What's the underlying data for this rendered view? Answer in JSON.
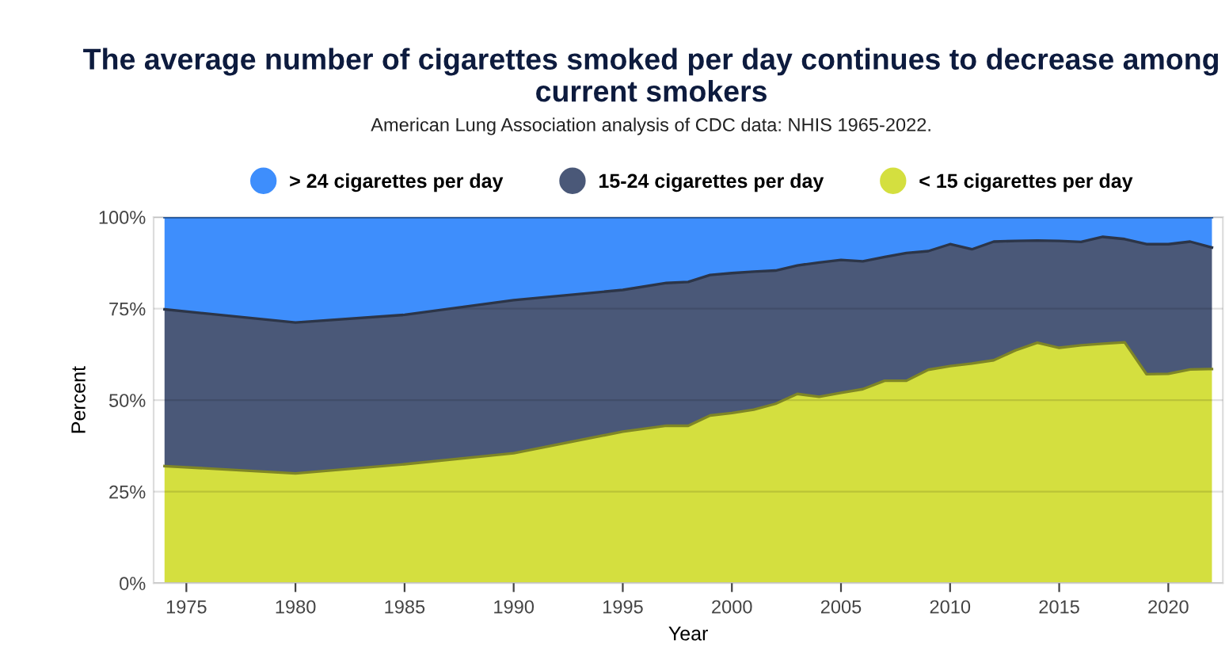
{
  "chart_data": {
    "type": "area",
    "stacked": true,
    "title": "The average number of cigarettes smoked per day continues to decrease among current smokers",
    "subtitle": "American Lung Association analysis of CDC data: NHIS 1965-2022.",
    "xlabel": "Year",
    "ylabel": "Percent",
    "x": [
      1974,
      1980,
      1985,
      1990,
      1995,
      1997,
      1998,
      1999,
      2000,
      2001,
      2002,
      2003,
      2004,
      2005,
      2006,
      2007,
      2008,
      2009,
      2010,
      2011,
      2012,
      2013,
      2014,
      2015,
      2016,
      2017,
      2018,
      2019,
      2020,
      2021,
      2022
    ],
    "series": [
      {
        "name": "< 15 cigarettes per day",
        "color": "#d4df3f",
        "values": [
          32,
          30,
          32.5,
          35.5,
          41.4,
          43,
          43,
          45.8,
          46.5,
          47.4,
          49,
          51.7,
          50.9,
          52,
          53,
          55.3,
          55.3,
          58.3,
          59.3,
          60,
          60.9,
          63.6,
          65.7,
          64.3,
          65,
          65.4,
          65.8,
          57.1,
          57.2,
          58.4,
          58.5
        ]
      },
      {
        "name": "15-24 cigarettes per day",
        "color": "#4a5878",
        "values": [
          42.8,
          41.2,
          40.8,
          41.8,
          38.7,
          39,
          39.3,
          38.4,
          38.2,
          37.7,
          36.4,
          35.1,
          36.7,
          36.3,
          34.9,
          33.8,
          34.9,
          32.4,
          33.3,
          31.2,
          32.4,
          29.9,
          27.9,
          29.2,
          28.2,
          29.2,
          28.2,
          35.5,
          35.4,
          34.9,
          33.2
        ]
      },
      {
        "name": "> 24 cigarettes per day",
        "color": "#3e8efc",
        "values": [
          25.2,
          28.8,
          26.7,
          22.7,
          19.9,
          18,
          17.7,
          15.8,
          15.3,
          14.9,
          14.6,
          13.2,
          12.4,
          11.7,
          12.1,
          10.9,
          9.8,
          9.3,
          7.4,
          8.8,
          6.7,
          6.5,
          6.4,
          6.5,
          6.8,
          5.4,
          6,
          7.4,
          7.4,
          6.7,
          8.3
        ]
      }
    ],
    "xlim": [
      1973.5,
      2022.5
    ],
    "xticks": [
      1975,
      1980,
      1985,
      1990,
      1995,
      2000,
      2005,
      2010,
      2015,
      2020
    ],
    "ylim": [
      0,
      100
    ],
    "yticks": [
      {
        "value": 0,
        "label": "0%"
      },
      {
        "value": 25,
        "label": "25%"
      },
      {
        "value": 50,
        "label": "50%"
      },
      {
        "value": 75,
        "label": "75%"
      },
      {
        "value": 100,
        "label": "100%"
      }
    ],
    "grid": "y",
    "legend": "top"
  }
}
